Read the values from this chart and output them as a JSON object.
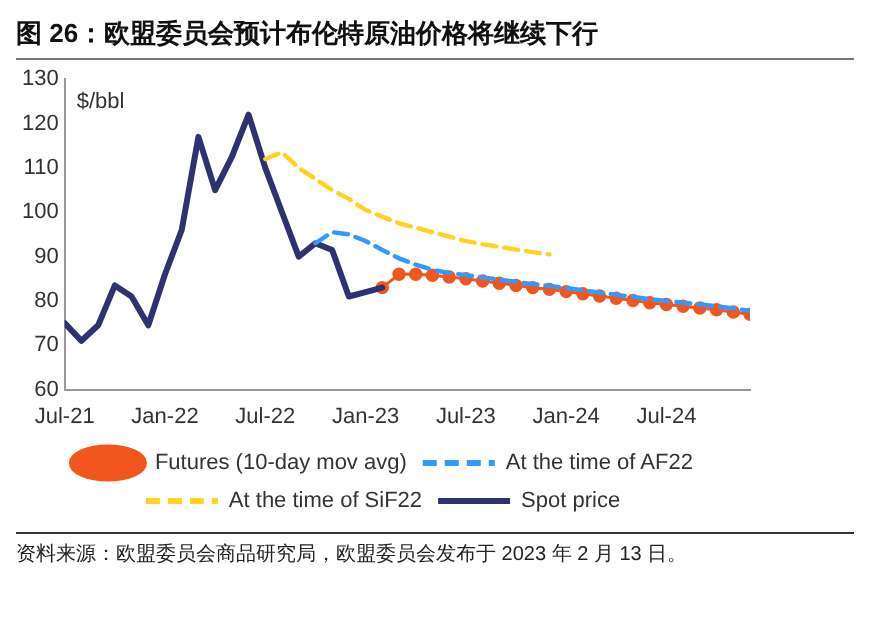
{
  "chart_data": {
    "type": "line",
    "title": "图 26：欧盟委员会预计布伦特原油价格将继续下行",
    "ylabel": "$/bbl",
    "annotations": [
      "资料来源：欧盟委员会商品研究局，欧盟委员会发布于 2023 年 2 月 13 日。"
    ],
    "series": [
      {
        "name": "Futures (10-day mov avg)",
        "color": "#f0561d",
        "marker": "circle",
        "line_style": "solid",
        "x": [
          "2023-02",
          "2023-03",
          "2023-04",
          "2023-05",
          "2023-06",
          "2023-07",
          "2023-08",
          "2023-09",
          "2023-10",
          "2023-11",
          "2023-12",
          "2024-01",
          "2024-02",
          "2024-03",
          "2024-04",
          "2024-05",
          "2024-06",
          "2024-07",
          "2024-08",
          "2024-09",
          "2024-10",
          "2024-11",
          "2024-12"
        ],
        "values": [
          83,
          86,
          86,
          85.8,
          85.4,
          85,
          84.5,
          84,
          83.5,
          83,
          82.6,
          82.1,
          81.6,
          81.1,
          80.6,
          80.1,
          79.6,
          79.2,
          78.8,
          78.4,
          78,
          77.5,
          77
        ]
      },
      {
        "name": "At the time of AF22",
        "color": "#3399ff",
        "marker": "none",
        "line_style": "dashed",
        "x": [
          "2022-10",
          "2022-11",
          "2022-12",
          "2023-01",
          "2023-02",
          "2023-03",
          "2023-04",
          "2023-05",
          "2023-06",
          "2023-07",
          "2023-08",
          "2023-09",
          "2023-10",
          "2023-11",
          "2023-12",
          "2024-01",
          "2024-02",
          "2024-03",
          "2024-04",
          "2024-05",
          "2024-06",
          "2024-07",
          "2024-08",
          "2024-09",
          "2024-10",
          "2024-11",
          "2024-12"
        ],
        "values": [
          93,
          95.5,
          95,
          93.5,
          91.5,
          89.6,
          88.2,
          87,
          86.3,
          85.8,
          85.3,
          84.8,
          84.3,
          83.8,
          83.4,
          82.9,
          82.4,
          81.9,
          81.4,
          80.9,
          80.4,
          80,
          79.6,
          79.2,
          78.8,
          78.3,
          77.8
        ]
      },
      {
        "name": "At the time of SiF22",
        "color": "#ffd320",
        "marker": "none",
        "line_style": "dashed",
        "x": [
          "2022-07",
          "2022-08",
          "2022-09",
          "2022-10",
          "2022-11",
          "2022-12",
          "2023-01",
          "2023-02",
          "2023-03",
          "2023-04",
          "2023-05",
          "2023-06",
          "2023-07",
          "2023-08",
          "2023-09",
          "2023-10",
          "2023-11",
          "2023-12"
        ],
        "values": [
          112,
          113.5,
          110,
          107.5,
          105,
          103,
          100.5,
          99,
          97.5,
          96.5,
          95.5,
          94.5,
          93.5,
          92.8,
          92.2,
          91.6,
          91,
          90.5
        ]
      },
      {
        "name": "Spot price",
        "color": "#2e3370",
        "marker": "none",
        "line_style": "solid",
        "x": [
          "2021-07",
          "2021-08",
          "2021-09",
          "2021-10",
          "2021-11",
          "2021-12",
          "2022-01",
          "2022-02",
          "2022-03",
          "2022-04",
          "2022-05",
          "2022-06",
          "2022-07",
          "2022-08",
          "2022-09",
          "2022-10",
          "2022-11",
          "2022-12",
          "2023-01",
          "2023-02"
        ],
        "values": [
          75,
          71,
          74.5,
          83.5,
          81,
          74.5,
          86,
          96,
          117,
          105,
          112.5,
          122,
          110,
          100,
          90,
          93,
          91.5,
          81,
          82,
          83
        ]
      }
    ],
    "xlim": [
      "2021-07",
      "2024-12"
    ],
    "xticks": [
      {
        "value": "2021-07",
        "label": "Jul-21"
      },
      {
        "value": "2022-01",
        "label": "Jan-22"
      },
      {
        "value": "2022-07",
        "label": "Jul-22"
      },
      {
        "value": "2023-01",
        "label": "Jan-23"
      },
      {
        "value": "2023-07",
        "label": "Jul-23"
      },
      {
        "value": "2024-01",
        "label": "Jan-24"
      },
      {
        "value": "2024-07",
        "label": "Jul-24"
      }
    ],
    "ylim": [
      60,
      130
    ],
    "yticks": [
      60,
      70,
      80,
      90,
      100,
      110,
      120,
      130
    ],
    "grid": false,
    "legend": "bottom"
  }
}
